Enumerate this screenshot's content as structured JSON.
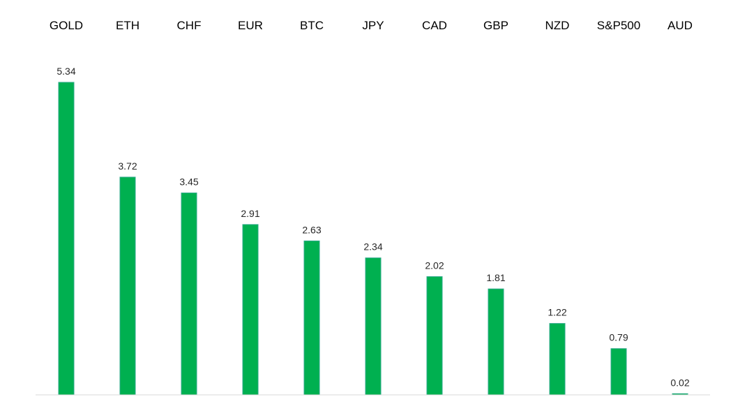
{
  "chart_data": {
    "type": "bar",
    "title": "",
    "xlabel": "",
    "ylabel": "",
    "categories": [
      "GOLD",
      "ETH",
      "CHF",
      "EUR",
      "BTC",
      "JPY",
      "CAD",
      "GBP",
      "NZD",
      "S&P500",
      "AUD"
    ],
    "values": [
      5.34,
      3.72,
      3.45,
      2.91,
      2.63,
      2.34,
      2.02,
      1.81,
      1.22,
      0.79,
      0.02
    ],
    "value_labels": [
      "5.34",
      "3.72",
      "3.45",
      "2.91",
      "2.63",
      "2.34",
      "2.02",
      "1.81",
      "1.22",
      "0.79",
      "0.02"
    ],
    "ylim": [
      0,
      5.34
    ],
    "grid": false,
    "legend": "none",
    "category_label_position": "top",
    "colors": {
      "bar_fill": "#00b050",
      "bar_edge": "#2ea889",
      "axis": "#d9d9d9"
    }
  }
}
